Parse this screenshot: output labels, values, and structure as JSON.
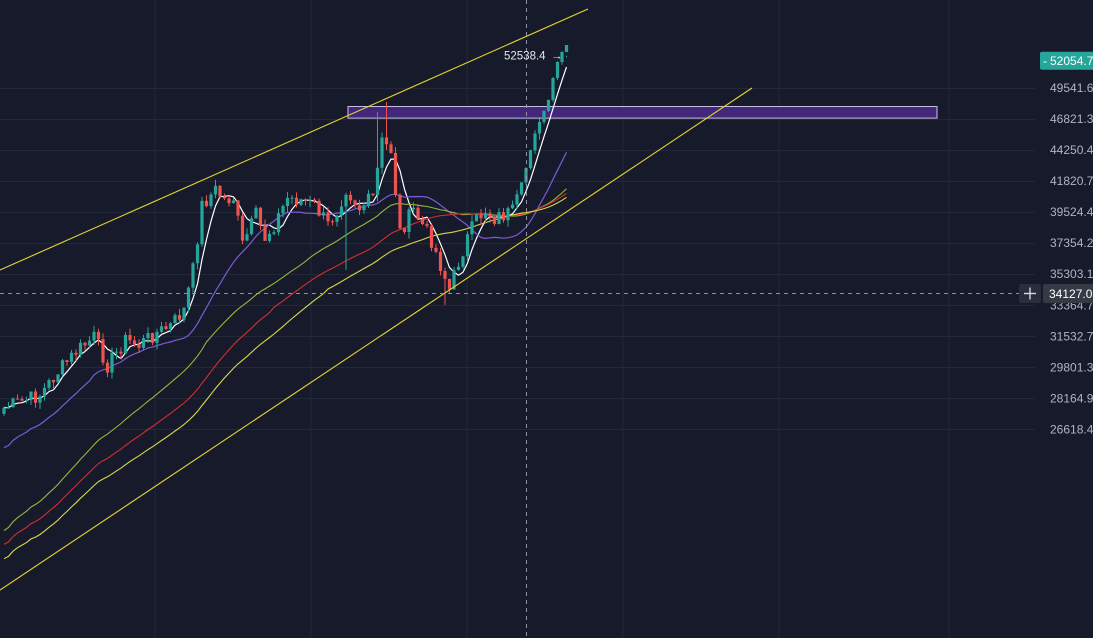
{
  "chart_data": {
    "type": "candlestick",
    "colors": {
      "background": "#161a2b",
      "grid": "#232838",
      "up": "#26a69a",
      "down": "#ef5350",
      "trendline": "#e6d52e",
      "zone_fill": "#4a2a8a",
      "zone_border": "#c9c3e6",
      "ma_white": "#ffffff",
      "ma_purple": "#7b5bd6",
      "ma_green": "#8fb83a",
      "ma_red": "#d42f2f",
      "ma_yellow": "#d8d84a",
      "price_tag": "#26a69a",
      "crosshair_tag": "#363a45"
    },
    "y_axis": {
      "ticks": [
        "49541.6",
        "46821.3",
        "44250.4",
        "41820.7",
        "39524.4",
        "37354.2",
        "35303.1",
        "33364.7",
        "31532.7",
        "29801.3",
        "28164.9",
        "26618.4"
      ],
      "scale": "log",
      "range": [
        26100,
        54400
      ]
    },
    "last_price": "52054.7",
    "last_price_marker": "-",
    "crosshair_price": "34127.0",
    "crosshair_icon": "plus-icon",
    "high_label": "52538.4",
    "high_arrow": "→",
    "resistance_zone": [
      46900,
      47900
    ],
    "grid": true
  }
}
